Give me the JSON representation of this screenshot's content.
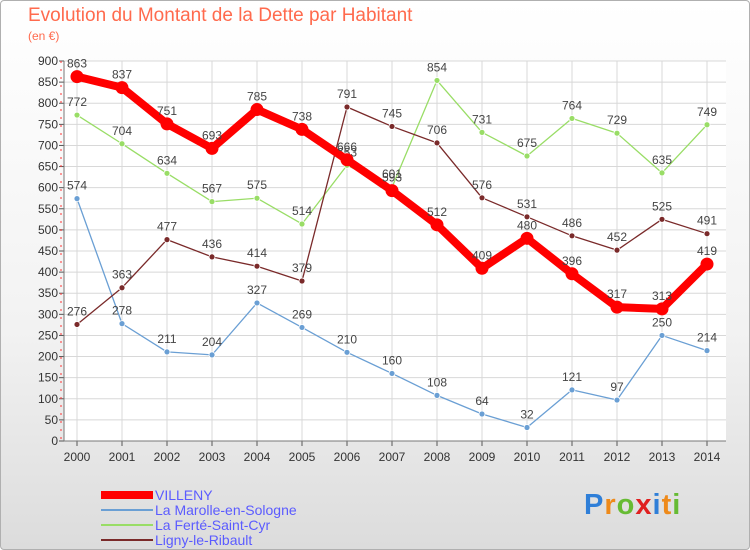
{
  "chart_data": {
    "type": "line",
    "title": "Evolution du Montant de la Dette par Habitant",
    "subtitle": "(en €)",
    "x": [
      "2000",
      "2001",
      "2002",
      "2003",
      "2004",
      "2005",
      "2006",
      "2007",
      "2008",
      "2009",
      "2010",
      "2011",
      "2012",
      "2013",
      "2014"
    ],
    "ylim": [
      0,
      900
    ],
    "yticks": [
      0,
      50,
      100,
      150,
      200,
      250,
      300,
      350,
      400,
      450,
      500,
      550,
      600,
      650,
      700,
      750,
      800,
      850,
      900
    ],
    "grid": true,
    "legend_placement": "bottom-left",
    "series": [
      {
        "name": "VILLENY",
        "color": "#ff0000",
        "values": [
          863,
          837,
          751,
          693,
          785,
          738,
          666,
          593,
          512,
          409,
          480,
          396,
          317,
          313,
          419
        ]
      },
      {
        "name": "La Marolle-en-Sologne",
        "color": "#6a9fd4",
        "values": [
          574,
          278,
          211,
          204,
          327,
          269,
          210,
          160,
          108,
          64,
          32,
          121,
          97,
          250,
          214
        ]
      },
      {
        "name": "La Ferté-Saint-Cyr",
        "color": "#99dd66",
        "values": [
          772,
          704,
          634,
          567,
          575,
          514,
          653,
          601,
          854,
          731,
          675,
          764,
          729,
          635,
          749
        ]
      },
      {
        "name": "Ligny-le-Ribault",
        "color": "#7a2a2a",
        "values": [
          276,
          363,
          477,
          436,
          414,
          379,
          791,
          745,
          706,
          576,
          531,
          486,
          452,
          525,
          491
        ]
      }
    ]
  },
  "logo": {
    "text": "Proxiti",
    "letters": [
      "P",
      "r",
      "o",
      "x",
      "i",
      "t",
      "i"
    ],
    "colors": [
      "#2f7fd8",
      "#ee8a1a",
      "#66bb33",
      "#e02020",
      "#2f7fd8",
      "#ee8a1a",
      "#66bb33"
    ]
  }
}
